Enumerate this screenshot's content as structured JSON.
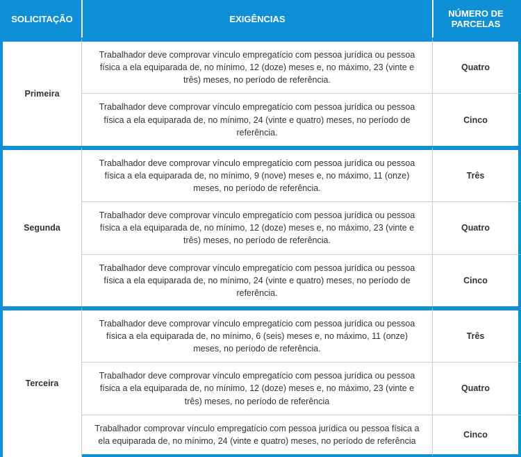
{
  "table": {
    "header_bg": "#0f8fd6",
    "header_color": "#ffffff",
    "body_text_color": "#333333",
    "border_light": "#cccccc",
    "columns": {
      "solicitacao": "SOLICITAÇÃO",
      "exigencias": "EXIGÊNCIAS",
      "parcelas": "NÚMERO DE PARCELAS"
    },
    "groups": [
      {
        "solicitacao": "Primeira",
        "rows": [
          {
            "exigencia": "Trabalhador deve comprovar vínculo empregatício com pessoa jurídica ou pessoa física a ela equiparada de, no mínimo, 12 (doze) meses e, no máximo, 23 (vinte e três) meses, no período de referência.",
            "parcelas": "Quatro"
          },
          {
            "exigencia": "Trabalhador deve comprovar vínculo empregatício com pessoa jurídica ou pessoa física a ela equiparada de, no mínimo, 24 (vinte e quatro) meses, no período de referência.",
            "parcelas": "Cinco"
          }
        ]
      },
      {
        "solicitacao": "Segunda",
        "rows": [
          {
            "exigencia": "Trabalhador deve comprovar vínculo empregatício com pessoa jurídica ou pessoa física a ela equiparada de, no mínimo, 9 (nove) meses e, no máximo, 11 (onze) meses, no período de referência.",
            "parcelas": "Três"
          },
          {
            "exigencia": "Trabalhador deve comprovar vínculo empregatício com pessoa jurídica ou pessoa física a ela equiparada de, no mínimo, 12 (doze) meses e, no máximo, 23 (vinte e três) meses, no período de referência.",
            "parcelas": "Quatro"
          },
          {
            "exigencia": "Trabalhador deve comprovar vínculo empregatício com pessoa jurídica ou pessoa física a ela equiparada de, no mínimo, 24 (vinte e quatro) meses, no período de referência.",
            "parcelas": "Cinco"
          }
        ]
      },
      {
        "solicitacao": "Terceira",
        "rows": [
          {
            "exigencia": "Trabalhador deve comprovar vínculo empregatício com pessoa jurídica ou pessoa física a ela equiparada de, no mínimo, 6 (seis) meses e, no máximo, 11 (onze) meses, no período de referência.",
            "parcelas": "Três"
          },
          {
            "exigencia": "Trabalhador deve comprovar vínculo empregatício com pessoa jurídica ou pessoa física a ela equiparada de, no mínimo, 12 (doze) meses e, no máximo, 23 (vinte e três) meses, no período de referência",
            "parcelas": "Quatro"
          },
          {
            "exigencia": "Trabalhador comprovar vínculo empregatício com pessoa jurídica ou pessoa física a ela equiparada de, no mínimo, 24 (vinte e quatro) meses, no período de referência",
            "parcelas": "Cinco"
          }
        ]
      }
    ]
  }
}
